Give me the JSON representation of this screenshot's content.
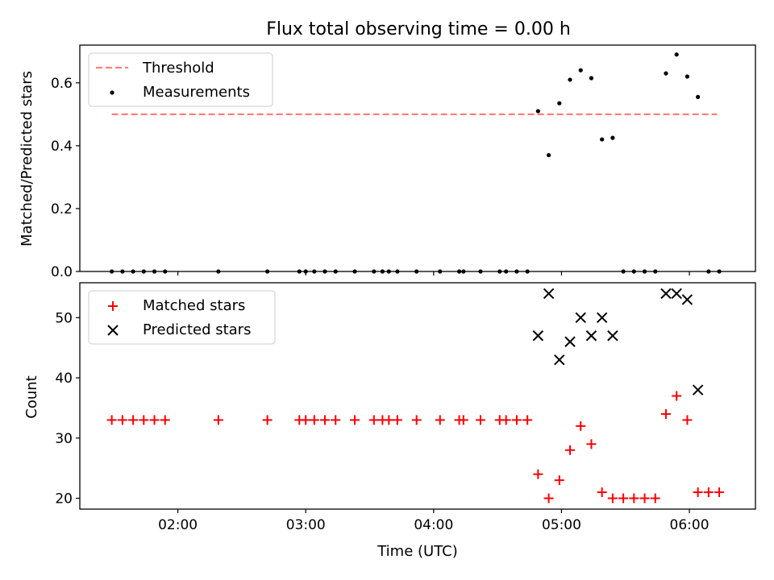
{
  "figure": {
    "title": "Flux total observing time = 0.00 h"
  },
  "chart_data": [
    {
      "type": "scatter",
      "title": "Flux total observing time = 0.00 h",
      "xlabel": "",
      "ylabel": "Matched/Predicted stars",
      "xlim": [
        "01:14",
        "06:31"
      ],
      "ylim": [
        0,
        0.72
      ],
      "yticks": [
        0.0,
        0.2,
        0.4,
        0.6
      ],
      "ytick_labels": [
        "0.0",
        "0.2",
        "0.4",
        "0.6"
      ],
      "xticks": [
        "02:00",
        "03:00",
        "04:00",
        "05:00",
        "06:00"
      ],
      "grid": false,
      "legend": "top-left",
      "threshold": {
        "name": "Threshold",
        "value": 0.5,
        "x_start": "01:29",
        "x_end": "06:13",
        "color": "#ff7f7f",
        "style": "dashed"
      },
      "series": [
        {
          "name": "Measurements",
          "marker": "dot",
          "color": "#000000",
          "x": [
            "01:29",
            "01:34",
            "01:39",
            "01:44",
            "01:49",
            "01:54",
            "02:19",
            "02:42",
            "02:57",
            "03:00",
            "03:04",
            "03:09",
            "03:14",
            "03:23",
            "03:32",
            "03:36",
            "03:39",
            "03:43",
            "03:52",
            "04:03",
            "04:12",
            "04:14",
            "04:22",
            "04:31",
            "04:34",
            "04:39",
            "04:44",
            "04:49",
            "04:54",
            "04:59",
            "05:04",
            "05:09",
            "05:14",
            "05:19",
            "05:24",
            "05:29",
            "05:34",
            "05:39",
            "05:44",
            "05:49",
            "05:54",
            "05:59",
            "06:04",
            "06:09",
            "06:14"
          ],
          "y": [
            0,
            0,
            0,
            0,
            0,
            0,
            0,
            0,
            0,
            0,
            0,
            0,
            0,
            0,
            0,
            0,
            0,
            0,
            0,
            0,
            0,
            0,
            0,
            0,
            0,
            0,
            0,
            0.51,
            0.37,
            0.535,
            0.61,
            0.64,
            0.615,
            0.42,
            0.425,
            0,
            0,
            0,
            0,
            0.63,
            0.69,
            0.62,
            0.555,
            0,
            0
          ]
        }
      ]
    },
    {
      "type": "scatter",
      "xlabel": "Time (UTC)",
      "ylabel": "Count",
      "xlim": [
        "01:14",
        "06:31"
      ],
      "ylim": [
        18.2,
        55.8
      ],
      "yticks": [
        20,
        30,
        40,
        50
      ],
      "ytick_labels": [
        "20",
        "30",
        "40",
        "50"
      ],
      "xticks": [
        "02:00",
        "03:00",
        "04:00",
        "05:00",
        "06:00"
      ],
      "xtick_labels": [
        "02:00",
        "03:00",
        "04:00",
        "05:00",
        "06:00"
      ],
      "grid": false,
      "legend": "top-left",
      "series": [
        {
          "name": "Matched stars",
          "marker": "plus",
          "color": "#ff0000",
          "x": [
            "01:29",
            "01:34",
            "01:39",
            "01:44",
            "01:49",
            "01:54",
            "02:19",
            "02:42",
            "02:57",
            "03:00",
            "03:04",
            "03:09",
            "03:14",
            "03:23",
            "03:32",
            "03:36",
            "03:39",
            "03:43",
            "03:52",
            "04:03",
            "04:12",
            "04:14",
            "04:22",
            "04:31",
            "04:34",
            "04:39",
            "04:44",
            "04:49",
            "04:54",
            "04:59",
            "05:04",
            "05:09",
            "05:14",
            "05:19",
            "05:24",
            "05:29",
            "05:34",
            "05:39",
            "05:44",
            "05:49",
            "05:54",
            "05:59",
            "06:04",
            "06:09",
            "06:14"
          ],
          "y": [
            33,
            33,
            33,
            33,
            33,
            33,
            33,
            33,
            33,
            33,
            33,
            33,
            33,
            33,
            33,
            33,
            33,
            33,
            33,
            33,
            33,
            33,
            33,
            33,
            33,
            33,
            33,
            24,
            20,
            23,
            28,
            32,
            29,
            21,
            20,
            20,
            20,
            20,
            20,
            34,
            37,
            33,
            21,
            21,
            21
          ]
        },
        {
          "name": "Predicted stars",
          "marker": "x",
          "color": "#000000",
          "x": [
            "04:49",
            "04:54",
            "04:59",
            "05:04",
            "05:09",
            "05:14",
            "05:19",
            "05:24",
            "05:49",
            "05:54",
            "05:59",
            "06:04"
          ],
          "y": [
            47,
            54,
            43,
            46,
            50,
            47,
            50,
            47,
            54,
            54,
            53,
            38
          ]
        }
      ]
    }
  ]
}
